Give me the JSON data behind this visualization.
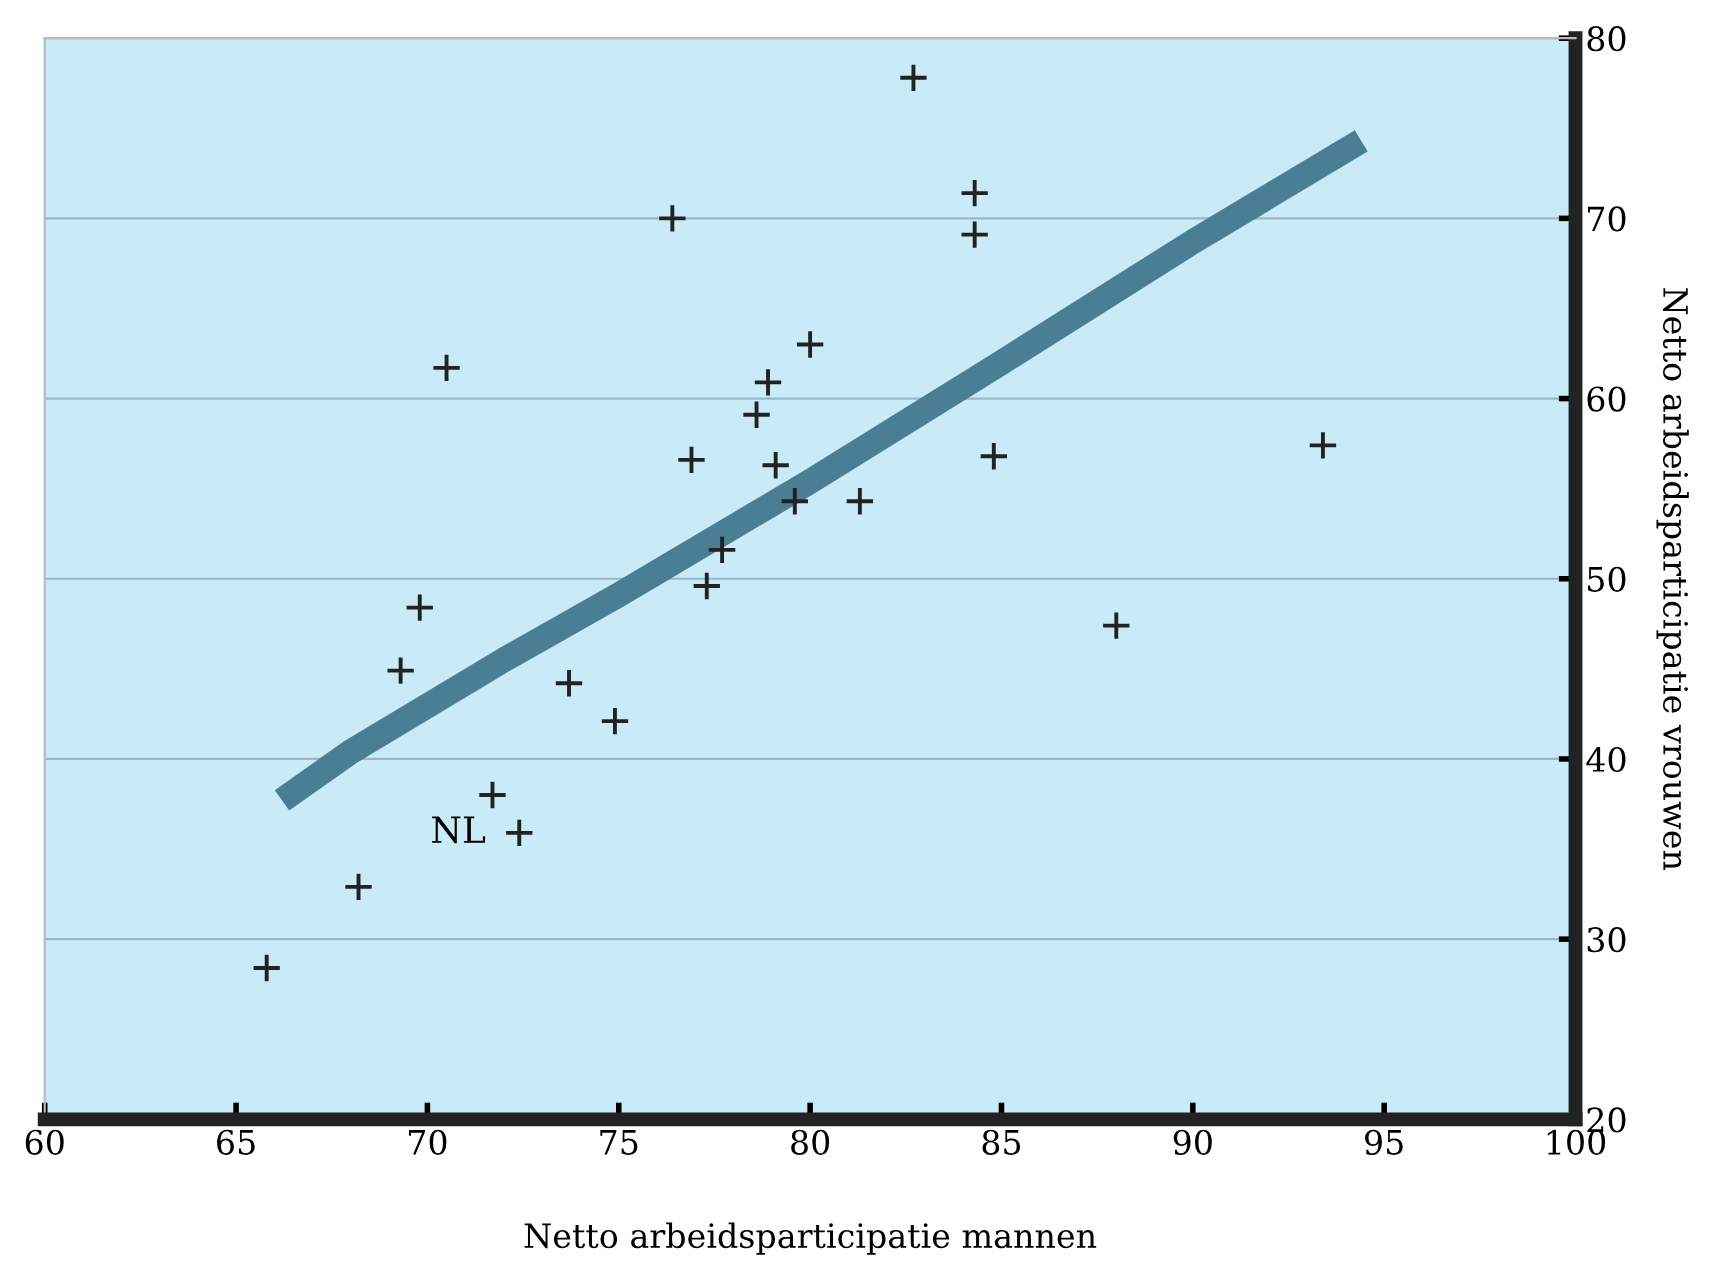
{
  "chart_data": {
    "type": "scatter",
    "xlabel": "Netto arbeidsparticipatie mannen",
    "ylabel": "Netto arbeidsparticipatie vrouwen",
    "xlim": [
      60,
      100
    ],
    "ylim": [
      20,
      80
    ],
    "xticks": [
      60,
      65,
      70,
      75,
      80,
      85,
      90,
      95,
      100
    ],
    "yticks": [
      20,
      30,
      40,
      50,
      60,
      70,
      80
    ],
    "grid": "y",
    "marker": "cross",
    "legend": false,
    "series": [
      {
        "color": "#222222",
        "x": [
          82.7,
          84.3,
          84.3,
          76.4,
          70.5,
          80.0,
          78.9,
          78.6,
          76.9,
          79.1,
          84.8,
          93.4,
          79.6,
          81.3,
          77.7,
          77.3,
          69.8,
          69.3,
          73.7,
          74.9,
          88.0,
          71.7,
          72.4,
          68.2,
          65.8
        ],
        "values": [
          77.8,
          71.4,
          69.1,
          70.0,
          61.7,
          63.0,
          60.9,
          59.1,
          56.6,
          56.3,
          56.8,
          57.4,
          54.3,
          54.3,
          51.6,
          49.6,
          48.4,
          44.9,
          44.2,
          42.1,
          47.4,
          38.0,
          35.9,
          32.9,
          28.4
        ]
      },
      {
        "type": "line",
        "color": "#4a7f93",
        "line_style": "solid",
        "marker": "none",
        "x": [
          66.2,
          68,
          72,
          75,
          80,
          85,
          90,
          94.4
        ],
        "values": [
          37.7,
          40.4,
          45.5,
          49.1,
          55.4,
          62.0,
          68.7,
          74.3
        ]
      }
    ],
    "annotations": [
      {
        "text": "NL",
        "x": 72.4,
        "y": 35.9
      }
    ]
  }
}
